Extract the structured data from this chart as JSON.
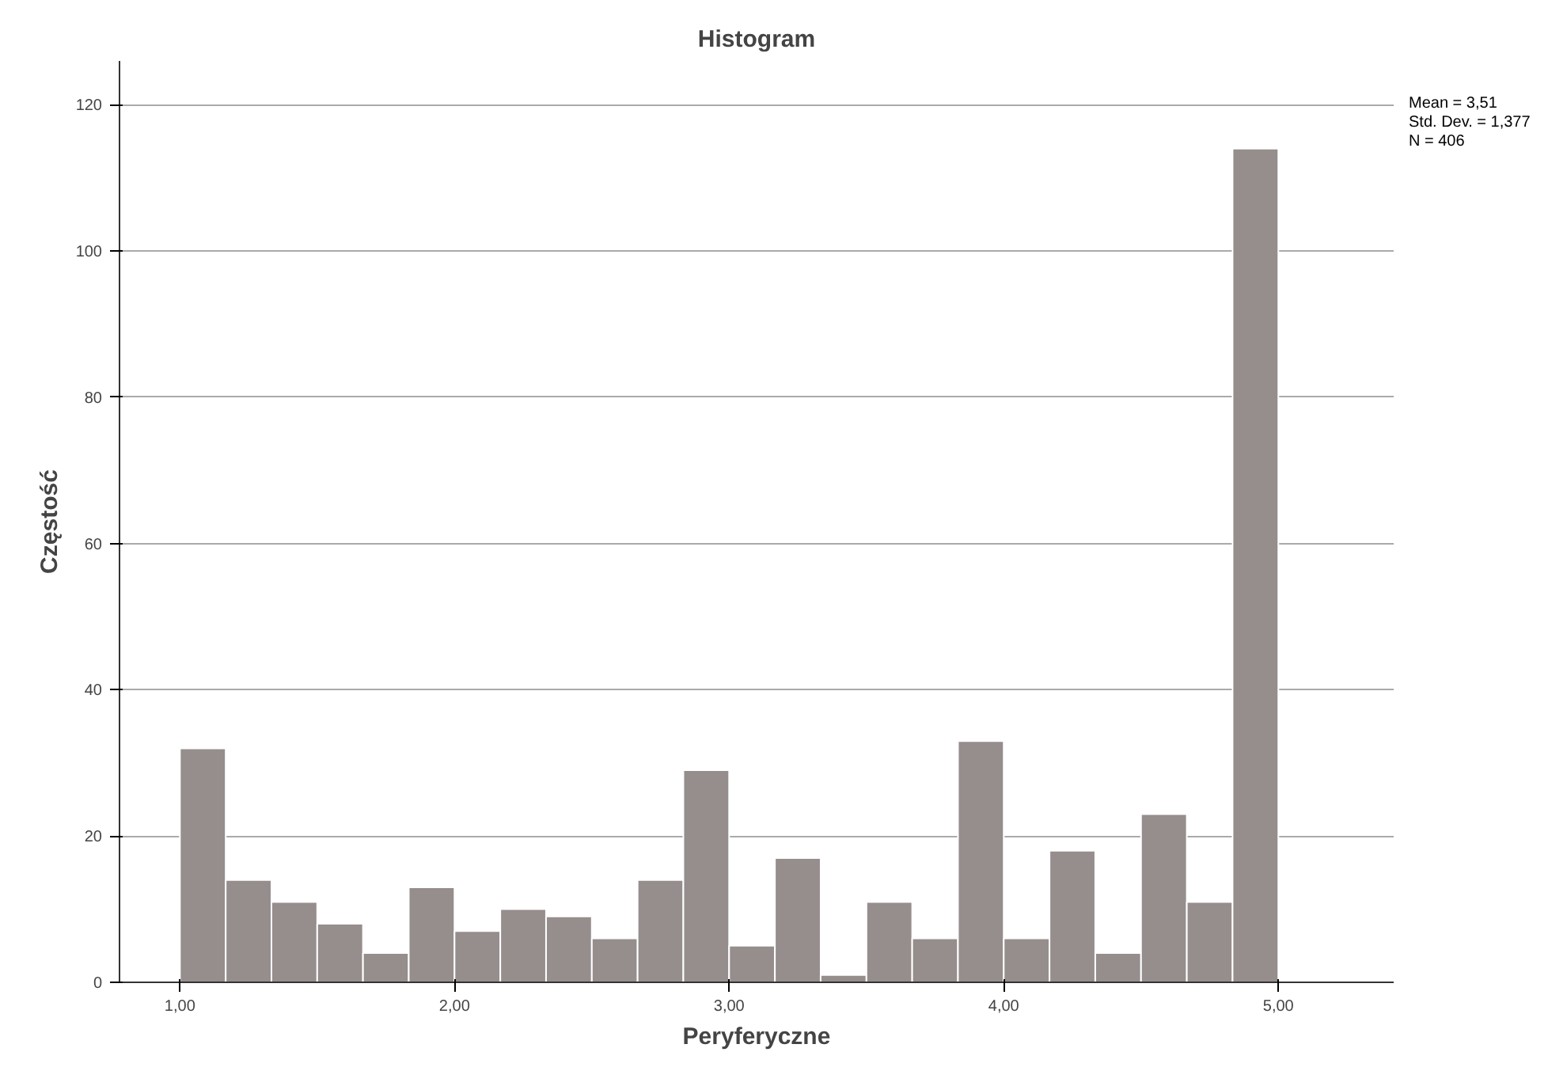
{
  "chart_data": {
    "type": "histogram",
    "title": "Histogram",
    "xlabel": "Peryferyczne",
    "ylabel": "Częstość",
    "bins": [
      1.0,
      1.1667,
      1.3333,
      1.5,
      1.6667,
      1.8333,
      2.0,
      2.1667,
      2.3333,
      2.5,
      2.6667,
      2.8333,
      3.0,
      3.1667,
      3.3333,
      3.5,
      3.6667,
      3.8333,
      4.0,
      4.1667,
      4.3333,
      4.5,
      4.6667,
      4.8333,
      5.0
    ],
    "values": [
      32,
      14,
      11,
      8,
      4,
      13,
      7,
      10,
      9,
      6,
      14,
      29,
      5,
      17,
      1,
      11,
      6,
      33,
      6,
      18,
      4,
      23,
      11,
      114
    ],
    "color": "#968d8d",
    "xlim": [
      0.78,
      5.42
    ],
    "ylim": [
      0,
      126
    ],
    "xticks": [
      {
        "value": 1,
        "label": "1,00"
      },
      {
        "value": 2,
        "label": "2,00"
      },
      {
        "value": 3,
        "label": "3,00"
      },
      {
        "value": 4,
        "label": "4,00"
      },
      {
        "value": 5,
        "label": "5,00"
      }
    ],
    "yticks": [
      0,
      20,
      40,
      60,
      80,
      100,
      120
    ],
    "grid": "y",
    "annotations": [
      "Mean = 3,51",
      "Std. Dev. = 1,377",
      "N = 406"
    ]
  }
}
